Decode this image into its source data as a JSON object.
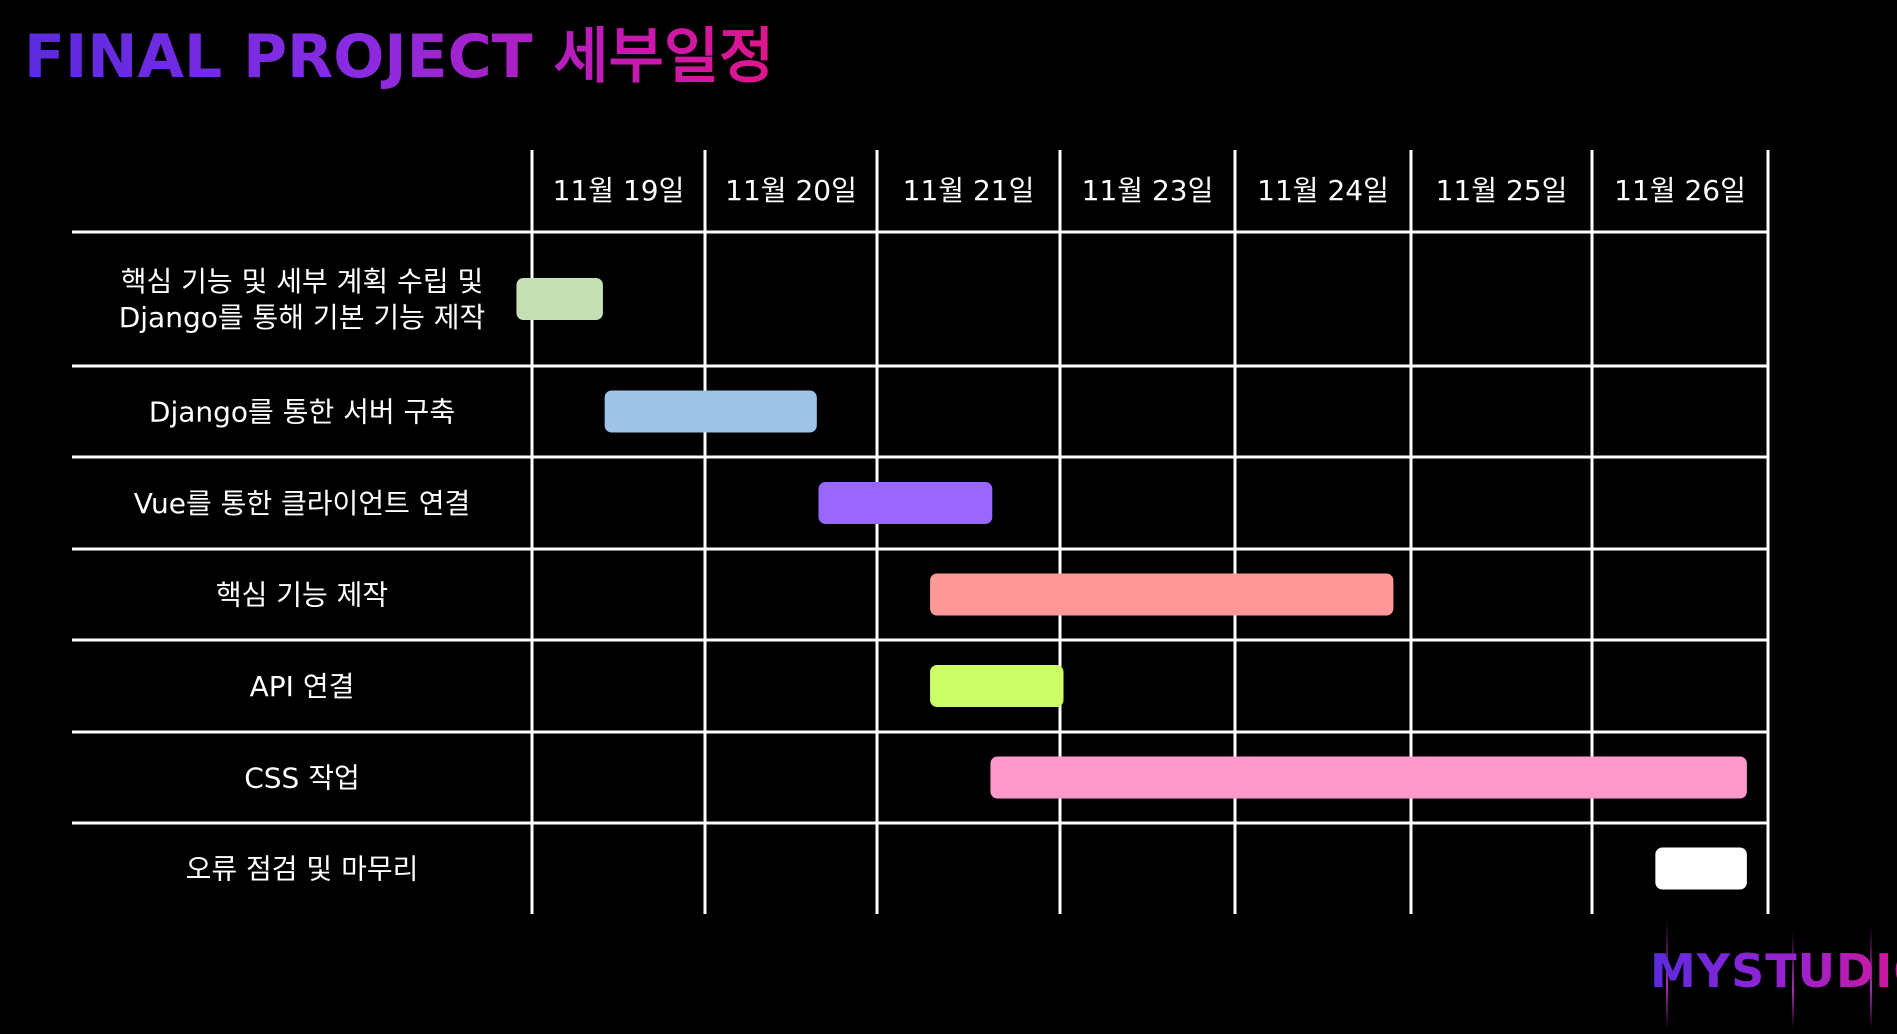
{
  "title": "FINAL PROJECT 세부일정",
  "logo": {
    "text": "MYSTUDIO"
  },
  "chart_data": {
    "type": "gantt",
    "dates": [
      "11월 19일",
      "11월 20일",
      "11월 21일",
      "11월 23일",
      "11월 24일",
      "11월 25일",
      "11월 26일"
    ],
    "tasks": [
      {
        "label_lines": [
          "핵심 기능 및 세부 계획 수립 및",
          "Django를 통해 기본 기능 제작"
        ],
        "start": -0.09,
        "end": 0.41,
        "color": "#c5e0b4"
      },
      {
        "label_lines": [
          "Django를 통한 서버 구축"
        ],
        "start": 0.42,
        "end": 1.65,
        "color": "#9dc3e6"
      },
      {
        "label_lines": [
          "Vue를 통한 클라이언트 연결"
        ],
        "start": 1.66,
        "end": 2.63,
        "color": "#9966ff"
      },
      {
        "label_lines": [
          "핵심 기능 제작"
        ],
        "start": 2.29,
        "end": 4.9,
        "color": "#ff9999"
      },
      {
        "label_lines": [
          "API 연결"
        ],
        "start": 2.29,
        "end": 3.02,
        "color": "#ccff66"
      },
      {
        "label_lines": [
          "CSS 작업"
        ],
        "start": 2.62,
        "end": 6.88,
        "color": "#ff99cc"
      },
      {
        "label_lines": [
          "오류 점검 및 마무리"
        ],
        "start": 6.36,
        "end": 6.88,
        "color": "#ffffff"
      }
    ]
  }
}
